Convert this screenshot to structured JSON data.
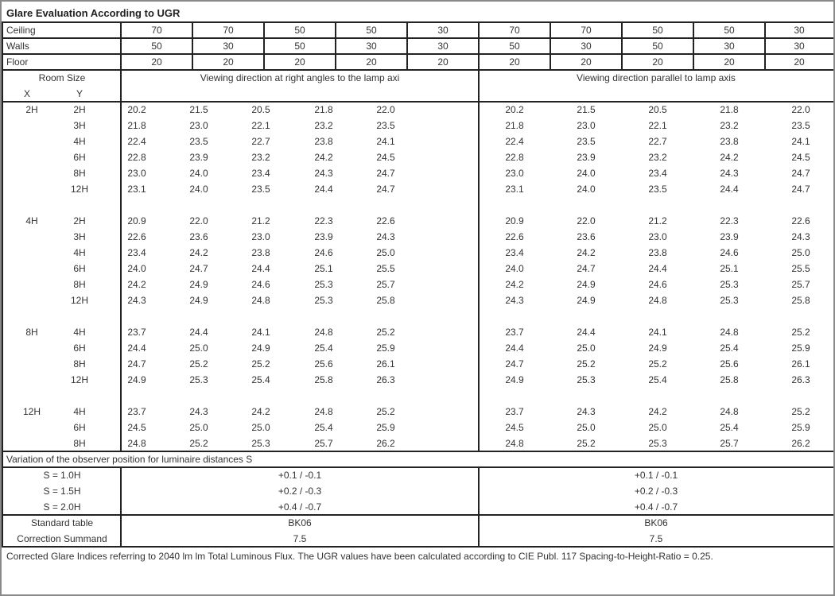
{
  "title": "Glare Evaluation According to UGR",
  "reflectances": {
    "ceiling": {
      "label": "Ceiling",
      "values": [
        "70",
        "70",
        "50",
        "50",
        "30",
        "70",
        "70",
        "50",
        "50",
        "30"
      ]
    },
    "walls": {
      "label": "Walls",
      "values": [
        "50",
        "30",
        "50",
        "30",
        "30",
        "50",
        "30",
        "50",
        "30",
        "30"
      ]
    },
    "floor": {
      "label": "Floor",
      "values": [
        "20",
        "20",
        "20",
        "20",
        "20",
        "20",
        "20",
        "20",
        "20",
        "20"
      ]
    }
  },
  "header": {
    "room_size": "Room Size",
    "x": "X",
    "y": "Y",
    "right_angles": "Viewing direction at right angles to the lamp axi",
    "parallel": "Viewing direction parallel to lamp axis"
  },
  "groups": [
    {
      "x": "2H",
      "rows": [
        {
          "y": "2H",
          "perp": [
            "20.2",
            "21.5",
            "20.5",
            "21.8",
            "22.0"
          ],
          "par": [
            "20.2",
            "21.5",
            "20.5",
            "21.8",
            "22.0"
          ]
        },
        {
          "y": "3H",
          "perp": [
            "21.8",
            "23.0",
            "22.1",
            "23.2",
            "23.5"
          ],
          "par": [
            "21.8",
            "23.0",
            "22.1",
            "23.2",
            "23.5"
          ]
        },
        {
          "y": "4H",
          "perp": [
            "22.4",
            "23.5",
            "22.7",
            "23.8",
            "24.1"
          ],
          "par": [
            "22.4",
            "23.5",
            "22.7",
            "23.8",
            "24.1"
          ]
        },
        {
          "y": "6H",
          "perp": [
            "22.8",
            "23.9",
            "23.2",
            "24.2",
            "24.5"
          ],
          "par": [
            "22.8",
            "23.9",
            "23.2",
            "24.2",
            "24.5"
          ]
        },
        {
          "y": "8H",
          "perp": [
            "23.0",
            "24.0",
            "23.4",
            "24.3",
            "24.7"
          ],
          "par": [
            "23.0",
            "24.0",
            "23.4",
            "24.3",
            "24.7"
          ]
        },
        {
          "y": "12H",
          "perp": [
            "23.1",
            "24.0",
            "23.5",
            "24.4",
            "24.7"
          ],
          "par": [
            "23.1",
            "24.0",
            "23.5",
            "24.4",
            "24.7"
          ]
        }
      ]
    },
    {
      "x": "4H",
      "rows": [
        {
          "y": "2H",
          "perp": [
            "20.9",
            "22.0",
            "21.2",
            "22.3",
            "22.6"
          ],
          "par": [
            "20.9",
            "22.0",
            "21.2",
            "22.3",
            "22.6"
          ]
        },
        {
          "y": "3H",
          "perp": [
            "22.6",
            "23.6",
            "23.0",
            "23.9",
            "24.3"
          ],
          "par": [
            "22.6",
            "23.6",
            "23.0",
            "23.9",
            "24.3"
          ]
        },
        {
          "y": "4H",
          "perp": [
            "23.4",
            "24.2",
            "23.8",
            "24.6",
            "25.0"
          ],
          "par": [
            "23.4",
            "24.2",
            "23.8",
            "24.6",
            "25.0"
          ]
        },
        {
          "y": "6H",
          "perp": [
            "24.0",
            "24.7",
            "24.4",
            "25.1",
            "25.5"
          ],
          "par": [
            "24.0",
            "24.7",
            "24.4",
            "25.1",
            "25.5"
          ]
        },
        {
          "y": "8H",
          "perp": [
            "24.2",
            "24.9",
            "24.6",
            "25.3",
            "25.7"
          ],
          "par": [
            "24.2",
            "24.9",
            "24.6",
            "25.3",
            "25.7"
          ]
        },
        {
          "y": "12H",
          "perp": [
            "24.3",
            "24.9",
            "24.8",
            "25.3",
            "25.8"
          ],
          "par": [
            "24.3",
            "24.9",
            "24.8",
            "25.3",
            "25.8"
          ]
        }
      ]
    },
    {
      "x": "8H",
      "rows": [
        {
          "y": "4H",
          "perp": [
            "23.7",
            "24.4",
            "24.1",
            "24.8",
            "25.2"
          ],
          "par": [
            "23.7",
            "24.4",
            "24.1",
            "24.8",
            "25.2"
          ]
        },
        {
          "y": "6H",
          "perp": [
            "24.4",
            "25.0",
            "24.9",
            "25.4",
            "25.9"
          ],
          "par": [
            "24.4",
            "25.0",
            "24.9",
            "25.4",
            "25.9"
          ]
        },
        {
          "y": "8H",
          "perp": [
            "24.7",
            "25.2",
            "25.2",
            "25.6",
            "26.1"
          ],
          "par": [
            "24.7",
            "25.2",
            "25.2",
            "25.6",
            "26.1"
          ]
        },
        {
          "y": "12H",
          "perp": [
            "24.9",
            "25.3",
            "25.4",
            "25.8",
            "26.3"
          ],
          "par": [
            "24.9",
            "25.3",
            "25.4",
            "25.8",
            "26.3"
          ]
        }
      ]
    },
    {
      "x": "12H",
      "rows": [
        {
          "y": "4H",
          "perp": [
            "23.7",
            "24.3",
            "24.2",
            "24.8",
            "25.2"
          ],
          "par": [
            "23.7",
            "24.3",
            "24.2",
            "24.8",
            "25.2"
          ]
        },
        {
          "y": "6H",
          "perp": [
            "24.5",
            "25.0",
            "25.0",
            "25.4",
            "25.9"
          ],
          "par": [
            "24.5",
            "25.0",
            "25.0",
            "25.4",
            "25.9"
          ]
        },
        {
          "y": "8H",
          "perp": [
            "24.8",
            "25.2",
            "25.3",
            "25.7",
            "26.2"
          ],
          "par": [
            "24.8",
            "25.2",
            "25.3",
            "25.7",
            "26.2"
          ]
        }
      ]
    }
  ],
  "variation": {
    "label": "Variation of the observer position for luminaire distances S",
    "rows": [
      {
        "s": "S = 1.0H",
        "perp": "+0.1 / -0.1",
        "par": "+0.1 / -0.1"
      },
      {
        "s": "S = 1.5H",
        "perp": "+0.2 / -0.3",
        "par": "+0.2 / -0.3"
      },
      {
        "s": "S = 2.0H",
        "perp": "+0.4 / -0.7",
        "par": "+0.4 / -0.7"
      }
    ]
  },
  "standard_table": {
    "label": "Standard table",
    "perp": "BK06",
    "par": "BK06"
  },
  "correction_summand": {
    "label": "Correction Summand",
    "perp": "7.5",
    "par": "7.5"
  },
  "footnote": "Corrected Glare Indices referring to 2040 lm lm Total Luminous Flux. The UGR values have been calculated according to CIE Publ. 117    Spacing-to-Height-Ratio = 0.25."
}
